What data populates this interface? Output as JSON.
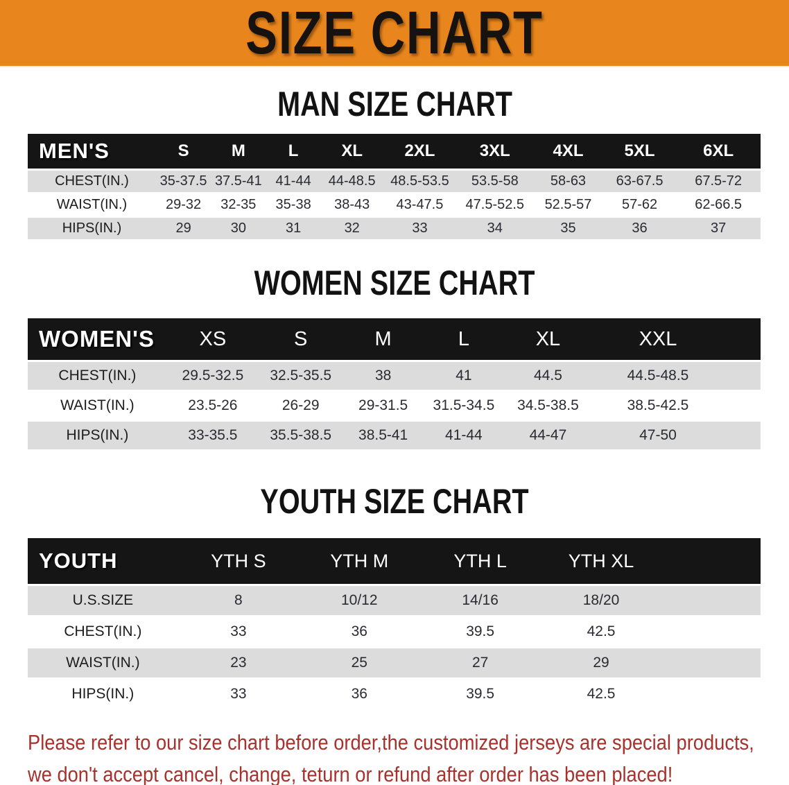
{
  "banner": {
    "title": "SIZE CHART",
    "bg_color": "#E8851D"
  },
  "sections": [
    {
      "heading": "MAN SIZE CHART",
      "table": {
        "corner_label": "MEN'S",
        "size_columns": [
          "S",
          "M",
          "L",
          "XL",
          "2XL",
          "3XL",
          "4XL",
          "5XL",
          "6XL"
        ],
        "rows": [
          {
            "label": "CHEST(IN.)",
            "values": [
              "35-37.5",
              "37.5-41",
              "41-44",
              "44-48.5",
              "48.5-53.5",
              "53.5-58",
              "58-63",
              "63-67.5",
              "67.5-72"
            ]
          },
          {
            "label": "WAIST(IN.)",
            "values": [
              "29-32",
              "32-35",
              "35-38",
              "38-43",
              "43-47.5",
              "47.5-52.5",
              "52.5-57",
              "57-62",
              "62-66.5"
            ]
          },
          {
            "label": "HIPS(IN.)",
            "values": [
              "29",
              "30",
              "31",
              "32",
              "33",
              "34",
              "35",
              "36",
              "37"
            ]
          }
        ]
      }
    },
    {
      "heading": "WOMEN SIZE CHART",
      "table": {
        "corner_label": "WOMEN'S",
        "size_columns": [
          "XS",
          "S",
          "M",
          "L",
          "XL",
          "XXL"
        ],
        "rows": [
          {
            "label": "CHEST(IN.)",
            "values": [
              "29.5-32.5",
              "32.5-35.5",
              "38",
              "41",
              "44.5",
              "44.5-48.5"
            ]
          },
          {
            "label": "WAIST(IN.)",
            "values": [
              "23.5-26",
              "26-29",
              "29-31.5",
              "31.5-34.5",
              "34.5-38.5",
              "38.5-42.5"
            ]
          },
          {
            "label": "HIPS(IN.)",
            "values": [
              "33-35.5",
              "35.5-38.5",
              "38.5-41",
              "41-44",
              "44-47",
              "47-50"
            ]
          }
        ]
      }
    },
    {
      "heading": "YOUTH SIZE CHART",
      "table": {
        "corner_label": "YOUTH",
        "size_columns": [
          "YTH S",
          "YTH M",
          "YTH L",
          "YTH XL"
        ],
        "rows": [
          {
            "label": "U.S.SIZE",
            "values": [
              "8",
              "10/12",
              "14/16",
              "18/20"
            ]
          },
          {
            "label": "CHEST(IN.)",
            "values": [
              "33",
              "36",
              "39.5",
              "42.5"
            ]
          },
          {
            "label": "WAIST(IN.)",
            "values": [
              "23",
              "25",
              "27",
              "29"
            ]
          },
          {
            "label": "HIPS(IN.)",
            "values": [
              "33",
              "36",
              "39.5",
              "42.5"
            ]
          }
        ]
      }
    }
  ],
  "footer": {
    "line1": "Please refer to our size chart before order,the customized jerseys are special products,",
    "line2": "we don't accept cancel, change, teturn or refund after order has been placed!",
    "text_color": "#A8312C"
  },
  "colors": {
    "table_header_bg": "#151515",
    "row_stripe": "#DCDCDC"
  }
}
